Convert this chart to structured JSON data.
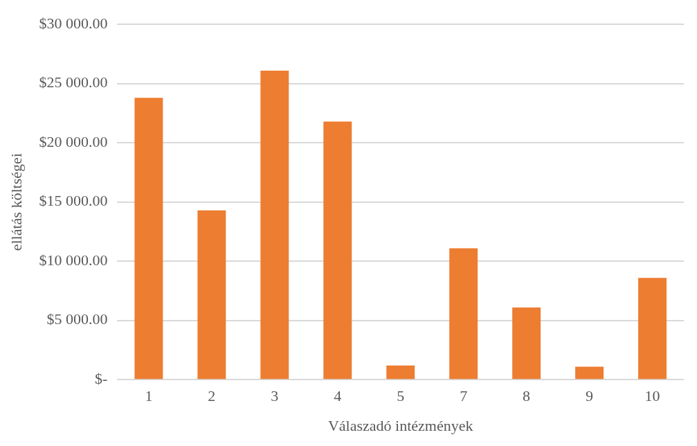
{
  "chart_data": {
    "type": "bar",
    "xlabel": "Válaszadó intézmények",
    "ylabel": "ellátás költségei",
    "categories": [
      "1",
      "2",
      "3",
      "4",
      "5",
      "7",
      "8",
      "9",
      "10"
    ],
    "values": [
      23800,
      14300,
      26100,
      21800,
      1200,
      11100,
      6100,
      1100,
      8600
    ],
    "color": "#ed7d31",
    "ylim": [
      0,
      30000
    ],
    "yticks": [
      {
        "value": 0,
        "label": "$-"
      },
      {
        "value": 5000,
        "label": "$5 000.00"
      },
      {
        "value": 10000,
        "label": "$10 000.00"
      },
      {
        "value": 15000,
        "label": "$15 000.00"
      },
      {
        "value": 20000,
        "label": "$20 000.00"
      },
      {
        "value": 25000,
        "label": "$25 000.00"
      },
      {
        "value": 30000,
        "label": "$30 000.00"
      }
    ],
    "grid": "y",
    "legend": false
  }
}
